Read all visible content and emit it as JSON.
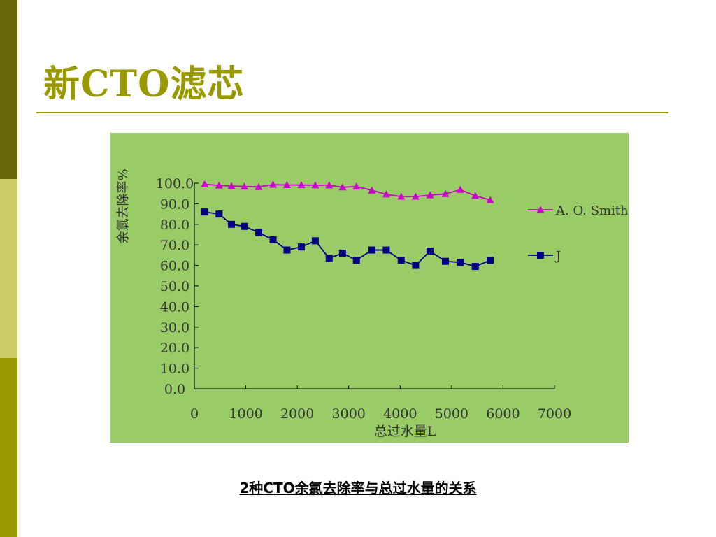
{
  "slide": {
    "title": "新CTO滤芯",
    "caption": "2种CTO余氯去除率与总过水量的关系"
  },
  "colors": {
    "strip_top": "#66660a",
    "strip_mid": "#cccc66",
    "strip_bot": "#999900",
    "title": "#999900",
    "chart_background": "#99cc66",
    "series_aosmith": "#cc00cc",
    "series_j": "#000080"
  },
  "chart_data": {
    "type": "line",
    "title": "",
    "xlabel": "总过水量L",
    "ylabel": "余氯去除率%",
    "xlim": [
      0,
      7000
    ],
    "ylim": [
      0,
      100
    ],
    "x_ticks": [
      "0",
      "1000",
      "2000",
      "3000",
      "4000",
      "5000",
      "6000",
      "7000"
    ],
    "y_ticks": [
      "0.0",
      "10.0",
      "20.0",
      "30.0",
      "40.0",
      "50.0",
      "60.0",
      "70.0",
      "80.0",
      "90.0",
      "100.0"
    ],
    "grid": false,
    "legend_position": "right",
    "x": [
      200,
      480,
      720,
      970,
      1250,
      1530,
      1800,
      2080,
      2350,
      2620,
      2880,
      3150,
      3450,
      3730,
      4020,
      4300,
      4580,
      4880,
      5170,
      5460,
      5750
    ],
    "series": [
      {
        "name": "A. O. Smith",
        "marker": "triangle",
        "values": [
          99.5,
          98.9,
          98.6,
          98.4,
          98.2,
          99.3,
          99.1,
          99.1,
          99.0,
          99.0,
          98.0,
          98.4,
          96.5,
          94.6,
          93.5,
          93.5,
          94.2,
          94.8,
          96.8,
          93.9,
          91.8
        ]
      },
      {
        "name": "J",
        "marker": "square",
        "values": [
          86.0,
          85.0,
          80.0,
          79.0,
          76.0,
          72.5,
          67.5,
          69.0,
          72.0,
          63.5,
          66.0,
          62.5,
          67.5,
          67.5,
          62.5,
          60.0,
          67.0,
          62.0,
          61.5,
          59.5,
          62.5
        ]
      }
    ]
  }
}
